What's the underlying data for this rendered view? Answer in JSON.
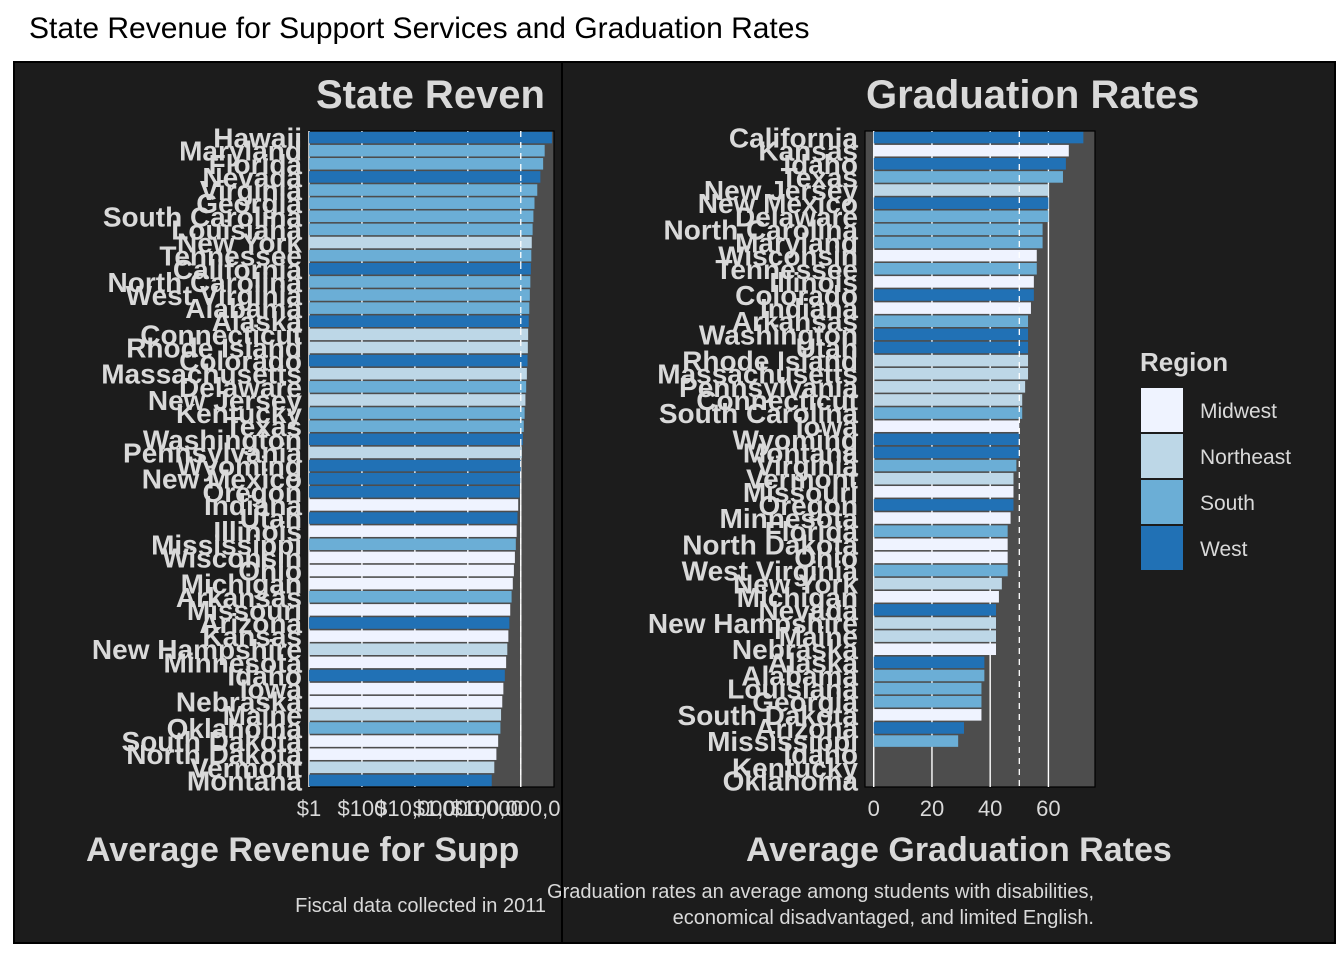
{
  "page": {
    "title": "State Revenue for Support Services and Graduation Rates"
  },
  "legend": {
    "title": "Region",
    "items": [
      {
        "label": "Midwest",
        "color": "#eff3ff"
      },
      {
        "label": "Northeast",
        "color": "#bdd7e7"
      },
      {
        "label": "South",
        "color": "#6baed6"
      },
      {
        "label": "West",
        "color": "#2171b5"
      }
    ]
  },
  "chart_data": [
    {
      "type": "bar",
      "orientation": "horizontal",
      "title": "State Reven",
      "xlabel": "Average Revenue for Supp",
      "caption": "Fiscal data collected in 2011",
      "x_scale": "log10",
      "xlim": [
        1,
        1800000000
      ],
      "tick_labels": [
        "$1",
        "$100",
        "$10,000",
        "$1,000,000",
        "$100,000,000,"
      ],
      "tick_values": [
        1,
        100,
        10000,
        1000000,
        100000000
      ],
      "reference_line": 100000000,
      "states": [
        "Hawaii",
        "Maryland",
        "Florida",
        "Nevada",
        "Virginia",
        "Georgia",
        "South Carolina",
        "Louisiana",
        "New York",
        "Tennessee",
        "California",
        "North Carolina",
        "West Virginia",
        "Alabama",
        "Alaska",
        "Connecticut",
        "Rhode Island",
        "Colorado",
        "Massachusetts",
        "Delaware",
        "New Jersey",
        "Kentucky",
        "Texas",
        "Washington",
        "Pennsylvania",
        "Wyoming",
        "New Mexico",
        "Oregon",
        "Indiana",
        "Utah",
        "Illinois",
        "Mississippi",
        "Wisconsin",
        "Ohio",
        "Michigan",
        "Arkansas",
        "Missouri",
        "Arizona",
        "Kansas",
        "New Hampshire",
        "Minnesota",
        "Idaho",
        "Iowa",
        "Nebraska",
        "Maine",
        "Oklahoma",
        "South Dakota",
        "North Dakota",
        "Vermont",
        "Montana"
      ],
      "regions": [
        "West",
        "South",
        "South",
        "West",
        "South",
        "South",
        "South",
        "South",
        "Northeast",
        "South",
        "West",
        "South",
        "South",
        "South",
        "West",
        "Northeast",
        "Northeast",
        "West",
        "Northeast",
        "South",
        "Northeast",
        "South",
        "South",
        "West",
        "Northeast",
        "West",
        "West",
        "West",
        "Midwest",
        "West",
        "Midwest",
        "South",
        "Midwest",
        "Midwest",
        "Midwest",
        "South",
        "Midwest",
        "West",
        "Midwest",
        "Northeast",
        "Midwest",
        "West",
        "Midwest",
        "Midwest",
        "Northeast",
        "South",
        "Midwest",
        "Midwest",
        "Northeast",
        "West"
      ],
      "values": [
        1500000000,
        800000000,
        700000000,
        550000000,
        420000000,
        330000000,
        300000000,
        280000000,
        260000000,
        250000000,
        240000000,
        230000000,
        220000000,
        210000000,
        200000000,
        190000000,
        185000000,
        180000000,
        170000000,
        160000000,
        150000000,
        140000000,
        130000000,
        120000000,
        110000000,
        100000000,
        95000000,
        90000000,
        80000000,
        75000000,
        70000000,
        65000000,
        60000000,
        55000000,
        50000000,
        45000000,
        40000000,
        37000000,
        34000000,
        31000000,
        28000000,
        25000000,
        22000000,
        20000000,
        18000000,
        17000000,
        14000000,
        12000000,
        10000000,
        8000000
      ]
    },
    {
      "type": "bar",
      "orientation": "horizontal",
      "title": "Graduation Rates",
      "xlabel": "Average Graduation Rates",
      "caption": "Graduation rates an average among students with disabilities,\neconomical disadvantaged, and limited English.",
      "xlim": [
        -3,
        76
      ],
      "tick_labels": [
        "0",
        "20",
        "40",
        "60"
      ],
      "tick_values": [
        0,
        20,
        40,
        60
      ],
      "reference_line": 50,
      "states": [
        "California",
        "Kansas",
        "Idaho",
        "Texas",
        "New Jersey",
        "New Mexico",
        "Delaware",
        "North Carolina",
        "Maryland",
        "Wisconsin",
        "Tennessee",
        "Illinois",
        "Colorado",
        "Indiana",
        "Arkansas",
        "Washington",
        "Utah",
        "Rhode Island",
        "Massachusetts",
        "Pennsylvania",
        "Connecticut",
        "South Carolina",
        "Iowa",
        "Wyoming",
        "Montana",
        "Virginia",
        "Vermont",
        "Missouri",
        "Oregon",
        "Minnesota",
        "Florida",
        "North Dakota",
        "Ohio",
        "West Virginia",
        "New York",
        "Michigan",
        "Nevada",
        "New Hampshire",
        "Maine",
        "Nebraska",
        "Alaska",
        "Alabama",
        "Louisiana",
        "Georgia",
        "South Dakota",
        "Arizona",
        "Mississippi",
        "Idaho",
        "Kentucky",
        "Oklahoma"
      ],
      "regions": [
        "West",
        "Midwest",
        "West",
        "South",
        "Northeast",
        "West",
        "South",
        "South",
        "South",
        "Midwest",
        "South",
        "Midwest",
        "West",
        "Midwest",
        "South",
        "West",
        "West",
        "Northeast",
        "Northeast",
        "Northeast",
        "Northeast",
        "South",
        "Midwest",
        "West",
        "West",
        "South",
        "Northeast",
        "Midwest",
        "West",
        "Midwest",
        "South",
        "Midwest",
        "Midwest",
        "South",
        "Northeast",
        "Midwest",
        "West",
        "Northeast",
        "Northeast",
        "Midwest",
        "West",
        "South",
        "South",
        "South",
        "Midwest",
        "West",
        "South",
        "West",
        "South",
        "South"
      ],
      "values": [
        72,
        67,
        66,
        65,
        60,
        60,
        60,
        58,
        58,
        56,
        56,
        55,
        55,
        54,
        53,
        53,
        53,
        53,
        53,
        52,
        51,
        51,
        50,
        50,
        50,
        49,
        48,
        48,
        48,
        47,
        46,
        46,
        46,
        46,
        44,
        43,
        42,
        42,
        42,
        42,
        38,
        38,
        37,
        37,
        37,
        31,
        29,
        null,
        null,
        null
      ]
    }
  ]
}
